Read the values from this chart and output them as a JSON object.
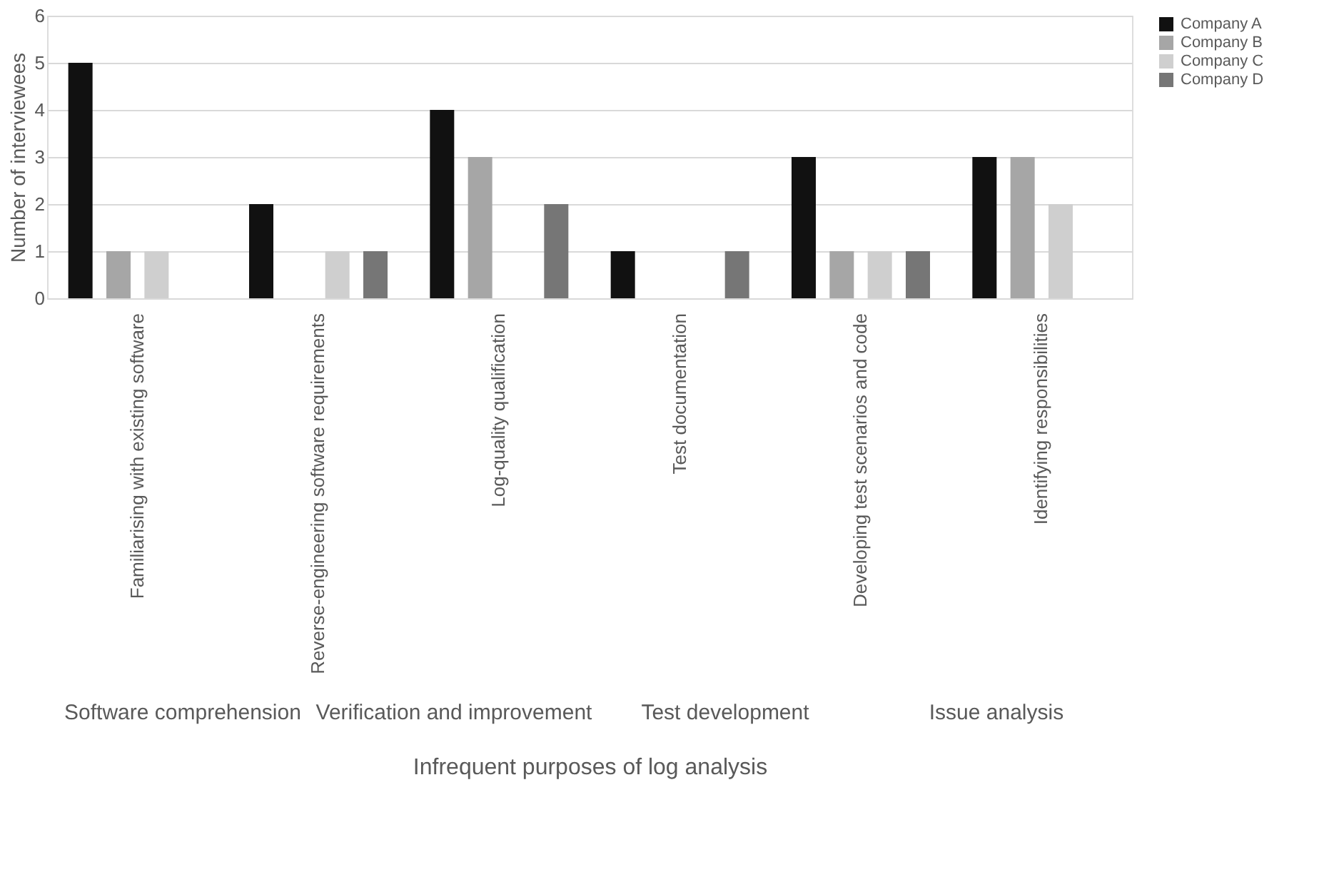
{
  "chart_data": {
    "type": "bar",
    "xlabel": "Infrequent purposes of log analysis",
    "ylabel": "Number of interviewees",
    "categories": [
      "Familiarising with existing software",
      "Reverse-engineering software requirements",
      "Log-quality qualification",
      "Test documentation",
      "Developing test scenarios and code",
      "Identifying responsibilities"
    ],
    "series": [
      {
        "name": "Company A",
        "color": "#111111",
        "values": [
          5,
          2,
          4,
          1,
          3,
          3
        ]
      },
      {
        "name": "Company B",
        "color": "#a6a6a6",
        "values": [
          1,
          0,
          3,
          0,
          1,
          3
        ]
      },
      {
        "name": "Company C",
        "color": "#cfcfcf",
        "values": [
          1,
          1,
          0,
          0,
          1,
          2
        ]
      },
      {
        "name": "Company D",
        "color": "#767676",
        "values": [
          0,
          1,
          2,
          1,
          1,
          0
        ]
      }
    ],
    "annotations": [
      "Software comprehension",
      "Verification and improvement",
      "Test development",
      "Issue analysis"
    ],
    "ylim": [
      0,
      6
    ],
    "yticks": [
      0,
      1,
      2,
      3,
      4,
      5,
      6
    ],
    "grid": "y",
    "legend": "right"
  }
}
